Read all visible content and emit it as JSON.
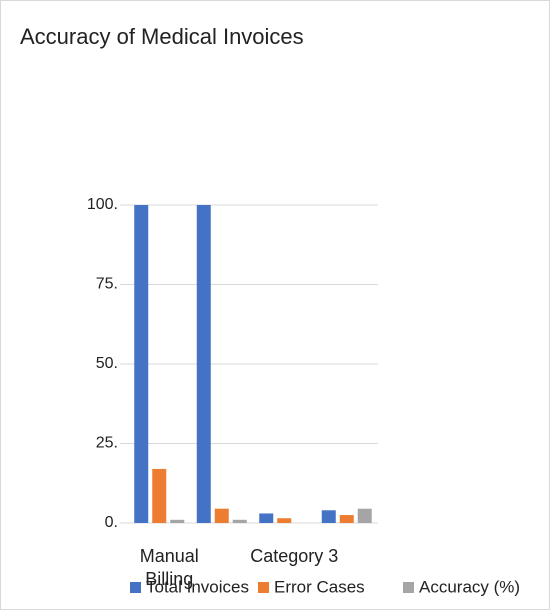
{
  "chart_data": {
    "type": "bar",
    "title": "Accuracy of Medical Invoices",
    "categories": [
      "Manual Billing",
      null,
      "Category 3",
      null
    ],
    "series": [
      {
        "name": "Total Invoices",
        "color": "#4472c4",
        "values": [
          100,
          100,
          3,
          4
        ]
      },
      {
        "name": "Error Cases",
        "color": "#ed7d31",
        "values": [
          17,
          4.5,
          1.5,
          2.5
        ]
      },
      {
        "name": "Accuracy (%)",
        "color": "#a5a5a5",
        "values": [
          1,
          1,
          0,
          4.5
        ]
      }
    ],
    "ylim": [
      0,
      100
    ],
    "yticks": [
      {
        "value": 0,
        "label": "0."
      },
      {
        "value": 25,
        "label": "25."
      },
      {
        "value": 50,
        "label": "50."
      },
      {
        "value": 75,
        "label": "75."
      },
      {
        "value": 100,
        "label": "100."
      }
    ],
    "grid": true,
    "legend": "bottom"
  }
}
